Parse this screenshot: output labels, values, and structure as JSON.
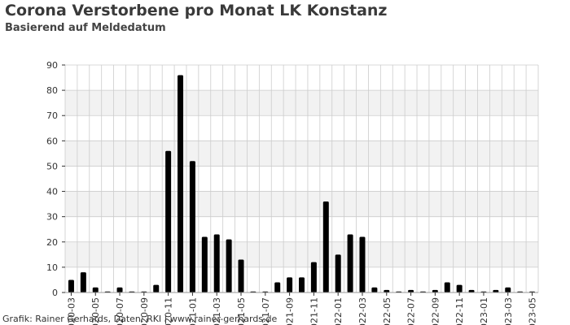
{
  "header": {
    "title": "Corona Verstorbene pro Monat LK Konstanz",
    "subtitle": "Basierend auf Meldedatum"
  },
  "footer": {
    "credit": "Grafik: Rainer Gerhards, Daten: RKI | www.rainer-gerhards.de"
  },
  "colors": {
    "bar": "#000000",
    "band": "#f2f2f2",
    "grid": "#cccccc"
  },
  "chart_data": {
    "type": "bar",
    "title": "Corona Verstorbene pro Monat LK Konstanz",
    "subtitle": "Basierend auf Meldedatum",
    "xlabel": "",
    "ylabel": "",
    "ylim": [
      0,
      90
    ],
    "yticks": [
      0,
      10,
      20,
      30,
      40,
      50,
      60,
      70,
      80,
      90
    ],
    "grid": true,
    "categories": [
      "2020-03",
      "2020-04",
      "2020-05",
      "2020-06",
      "2020-07",
      "2020-08",
      "2020-09",
      "2020-10",
      "2020-11",
      "2020-12",
      "2021-01",
      "2021-02",
      "2021-03",
      "2021-04",
      "2021-05",
      "2021-06",
      "2021-07",
      "2021-08",
      "2021-09",
      "2021-10",
      "2021-11",
      "2021-12",
      "2022-01",
      "2022-02",
      "2022-03",
      "2022-04",
      "2022-05",
      "2022-06",
      "2022-07",
      "2022-08",
      "2022-09",
      "2022-10",
      "2022-11",
      "2022-12",
      "2023-01",
      "2023-02",
      "2023-03",
      "2023-04",
      "2023-05"
    ],
    "tick_labels": [
      "2020-03",
      "2020-05",
      "2020-07",
      "2020-09",
      "2020-11",
      "2021-01",
      "2021-03",
      "2021-05",
      "2021-07",
      "2021-09",
      "2021-11",
      "2022-01",
      "2022-03",
      "2022-05",
      "2022-07",
      "2022-09",
      "2022-11",
      "2023-01",
      "2023-03",
      "2023-05"
    ],
    "values": [
      5,
      8,
      2,
      0,
      2,
      0,
      0,
      3,
      56,
      86,
      52,
      22,
      23,
      21,
      13,
      0,
      0,
      4,
      6,
      6,
      12,
      36,
      15,
      23,
      22,
      2,
      1,
      0,
      1,
      0,
      1,
      4,
      3,
      1,
      0,
      1,
      2,
      0,
      0
    ]
  }
}
